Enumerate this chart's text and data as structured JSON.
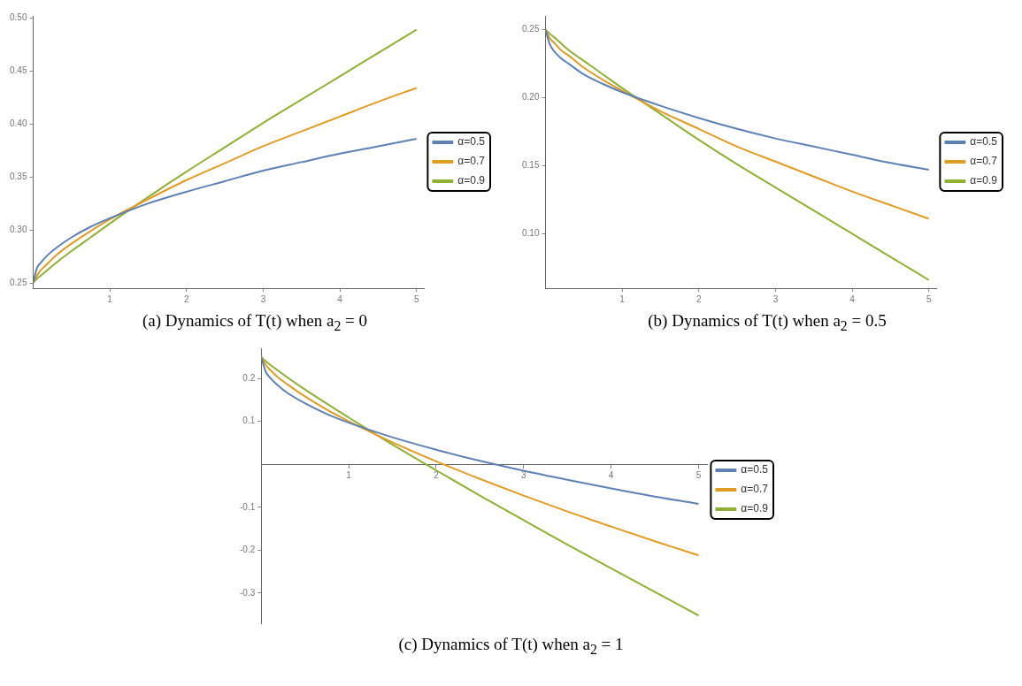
{
  "chart_data": [
    {
      "type": "line",
      "title": "(a) Dynamics of T(t) when a$_{2}$ = 0",
      "x": [
        0,
        0.05,
        0.1,
        0.2,
        0.3,
        0.5,
        0.75,
        1,
        1.5,
        2,
        2.5,
        3,
        3.5,
        4,
        4.5,
        5
      ],
      "xlim": [
        0,
        5.1
      ],
      "xticks": [
        1,
        2,
        3,
        4,
        5
      ],
      "ylim": [
        0.245,
        0.502
      ],
      "yticks": [
        {
          "value": 0.25,
          "label": "0.25"
        },
        {
          "value": 0.3,
          "label": "0.30"
        },
        {
          "value": 0.35,
          "label": "0.35"
        },
        {
          "value": 0.4,
          "label": "0.40"
        },
        {
          "value": 0.45,
          "label": "0.45"
        },
        {
          "value": 0.5,
          "label": "0.50"
        }
      ],
      "legend": "right",
      "grid": false,
      "series": [
        {
          "name": "α=0.5",
          "color": "#5e81b5",
          "values": [
            0.25,
            0.264,
            0.269,
            0.277,
            0.283,
            0.293,
            0.303,
            0.311,
            0.325,
            0.336,
            0.346,
            0.356,
            0.364,
            0.372,
            0.379,
            0.386
          ]
        },
        {
          "name": "α=0.7",
          "color": "#e19c24",
          "values": [
            0.25,
            0.257,
            0.262,
            0.269,
            0.276,
            0.287,
            0.299,
            0.31,
            0.329,
            0.347,
            0.363,
            0.379,
            0.393,
            0.407,
            0.421,
            0.434
          ]
        },
        {
          "name": "α=0.9",
          "color": "#8fb032",
          "values": [
            0.25,
            0.254,
            0.257,
            0.263,
            0.269,
            0.28,
            0.293,
            0.306,
            0.331,
            0.355,
            0.378,
            0.401,
            0.423,
            0.445,
            0.467,
            0.489
          ]
        }
      ]
    },
    {
      "type": "line",
      "title": "(b) Dynamics of T(t) when a$_{2}$ = 0.5",
      "x": [
        0,
        0.05,
        0.1,
        0.2,
        0.3,
        0.5,
        0.75,
        1,
        1.5,
        2,
        2.5,
        3,
        3.5,
        4,
        4.5,
        5
      ],
      "xlim": [
        0,
        5.1
      ],
      "xticks": [
        1,
        2,
        3,
        4,
        5
      ],
      "ylim": [
        0.06,
        0.26
      ],
      "yticks": [
        {
          "value": 0.1,
          "label": "0.10"
        },
        {
          "value": 0.15,
          "label": "0.15"
        },
        {
          "value": 0.2,
          "label": "0.20"
        },
        {
          "value": 0.25,
          "label": "0.25"
        }
      ],
      "legend": "right",
      "grid": false,
      "series": [
        {
          "name": "α=0.5",
          "color": "#5e81b5",
          "values": [
            0.25,
            0.24,
            0.235,
            0.229,
            0.225,
            0.217,
            0.21,
            0.204,
            0.194,
            0.185,
            0.177,
            0.17,
            0.164,
            0.158,
            0.152,
            0.147
          ]
        },
        {
          "name": "α=0.7",
          "color": "#e19c24",
          "values": [
            0.25,
            0.244,
            0.241,
            0.235,
            0.231,
            0.222,
            0.213,
            0.205,
            0.19,
            0.177,
            0.164,
            0.153,
            0.142,
            0.131,
            0.121,
            0.111
          ]
        },
        {
          "name": "α=0.9",
          "color": "#8fb032",
          "values": [
            0.25,
            0.247,
            0.245,
            0.24,
            0.235,
            0.227,
            0.217,
            0.207,
            0.188,
            0.169,
            0.151,
            0.134,
            0.117,
            0.1,
            0.083,
            0.066
          ]
        }
      ]
    },
    {
      "type": "line",
      "title": "(c) Dynamics of T(t) when a$_{2}$ = 1",
      "x": [
        0,
        0.05,
        0.1,
        0.2,
        0.3,
        0.5,
        0.75,
        1,
        1.5,
        2,
        2.5,
        3,
        3.5,
        4,
        4.5,
        5
      ],
      "xlim": [
        0,
        5.1
      ],
      "xticks": [
        1,
        2,
        3,
        4,
        5
      ],
      "ylim": [
        -0.37,
        0.27
      ],
      "yticks": [
        -0.3,
        -0.2,
        -0.1,
        0.1,
        0.2
      ],
      "legend": "right",
      "grid": false,
      "series": [
        {
          "name": "α=0.5",
          "color": "#5e81b5",
          "values": [
            0.25,
            0.216,
            0.202,
            0.182,
            0.166,
            0.142,
            0.117,
            0.097,
            0.063,
            0.034,
            0.008,
            -0.015,
            -0.036,
            -0.056,
            -0.075,
            -0.092
          ]
        },
        {
          "name": "α=0.7",
          "color": "#e19c24",
          "values": [
            0.25,
            0.232,
            0.22,
            0.201,
            0.186,
            0.158,
            0.127,
            0.1,
            0.051,
            0.007,
            -0.034,
            -0.073,
            -0.11,
            -0.145,
            -0.179,
            -0.212
          ]
        },
        {
          "name": "α=0.9",
          "color": "#8fb032",
          "values": [
            0.25,
            0.24,
            0.232,
            0.217,
            0.202,
            0.174,
            0.141,
            0.109,
            0.046,
            -0.014,
            -0.073,
            -0.13,
            -0.187,
            -0.242,
            -0.297,
            -0.352
          ]
        }
      ]
    }
  ]
}
